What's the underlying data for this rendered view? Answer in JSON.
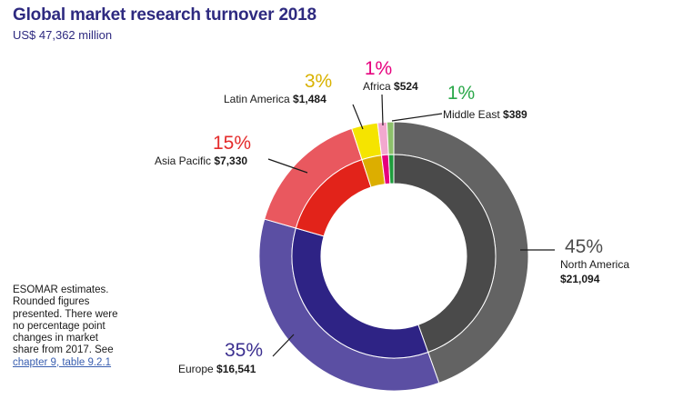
{
  "header": {
    "title": "Global market research turnover 2018",
    "subtitle": "US$ 47,362 million"
  },
  "note": {
    "text": "ESOMAR estimates. Rounded figures presented. There were no percentage point changes in market share from 2017. See ",
    "link_text": "chapter 9, table 9.2.1"
  },
  "chart_data": {
    "type": "pie",
    "variant": "double-ring donut",
    "title": "Global market research turnover 2018",
    "subtitle": "US$ 47,362 million",
    "total": 47362,
    "units": "US$ million",
    "slices": [
      {
        "name": "North America",
        "value": 21094,
        "value_label": "$21,094",
        "percent_label": "45%",
        "outer_color": "#636363",
        "inner_color": "#4a4a4a",
        "pct_color": "#4d4d4d"
      },
      {
        "name": "Europe",
        "value": 16541,
        "value_label": "$16,541",
        "percent_label": "35%",
        "outer_color": "#5b4fa3",
        "inner_color": "#2e2385",
        "pct_color": "#3b2f8f"
      },
      {
        "name": "Asia Pacific",
        "value": 7330,
        "value_label": "$7,330",
        "percent_label": "15%",
        "outer_color": "#e9585f",
        "inner_color": "#e2231a",
        "pct_color": "#e42c2c"
      },
      {
        "name": "Latin America",
        "value": 1484,
        "value_label": "$1,484",
        "percent_label": "3%",
        "outer_color": "#f5e400",
        "inner_color": "#dcae00",
        "pct_color": "#d9b200"
      },
      {
        "name": "Africa",
        "value": 524,
        "value_label": "$524",
        "percent_label": "1%",
        "outer_color": "#f2a8cf",
        "inner_color": "#e6007e",
        "pct_color": "#e6007e"
      },
      {
        "name": "Middle East",
        "value": 389,
        "value_label": "$389",
        "percent_label": "1%",
        "outer_color": "#8dc06b",
        "inner_color": "#1e9c3c",
        "pct_color": "#2ba84a"
      }
    ]
  }
}
